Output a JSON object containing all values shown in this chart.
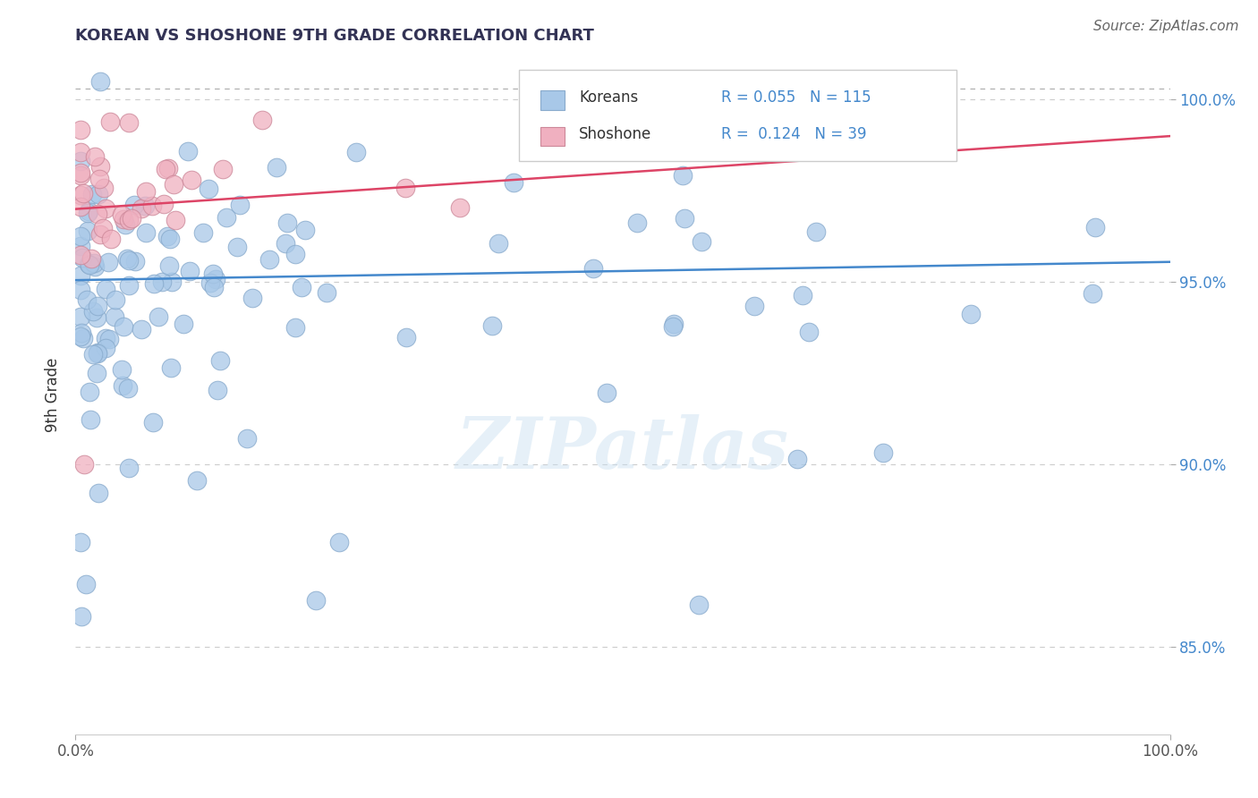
{
  "title": "KOREAN VS SHOSHONE 9TH GRADE CORRELATION CHART",
  "source": "Source: ZipAtlas.com",
  "ylabel": "9th Grade",
  "xlim": [
    0,
    1
  ],
  "ylim": [
    0.826,
    1.012
  ],
  "yticks": [
    0.85,
    0.9,
    0.95,
    1.0
  ],
  "ytick_labels": [
    "85.0%",
    "90.0%",
    "95.0%",
    "100.0%"
  ],
  "xticks": [
    0.0,
    1.0
  ],
  "xtick_labels": [
    "0.0%",
    "100.0%"
  ],
  "legend_labels": [
    "Koreans",
    "Shoshone"
  ],
  "blue_color": "#a8c8e8",
  "pink_color": "#f0b0c0",
  "blue_line_color": "#4488cc",
  "pink_line_color": "#dd4466",
  "R_blue": 0.055,
  "N_blue": 115,
  "R_pink": 0.124,
  "N_pink": 39,
  "dashed_line_y": 1.003,
  "watermark": "ZIPatlas",
  "blue_trend_start_y": 0.9505,
  "blue_trend_end_y": 0.9555,
  "pink_trend_start_y": 0.97,
  "pink_trend_end_y": 0.99,
  "title_color": "#333355",
  "title_fontsize": 13,
  "source_fontsize": 11,
  "axis_label_color": "#333333",
  "tick_color_right": "#4488cc"
}
